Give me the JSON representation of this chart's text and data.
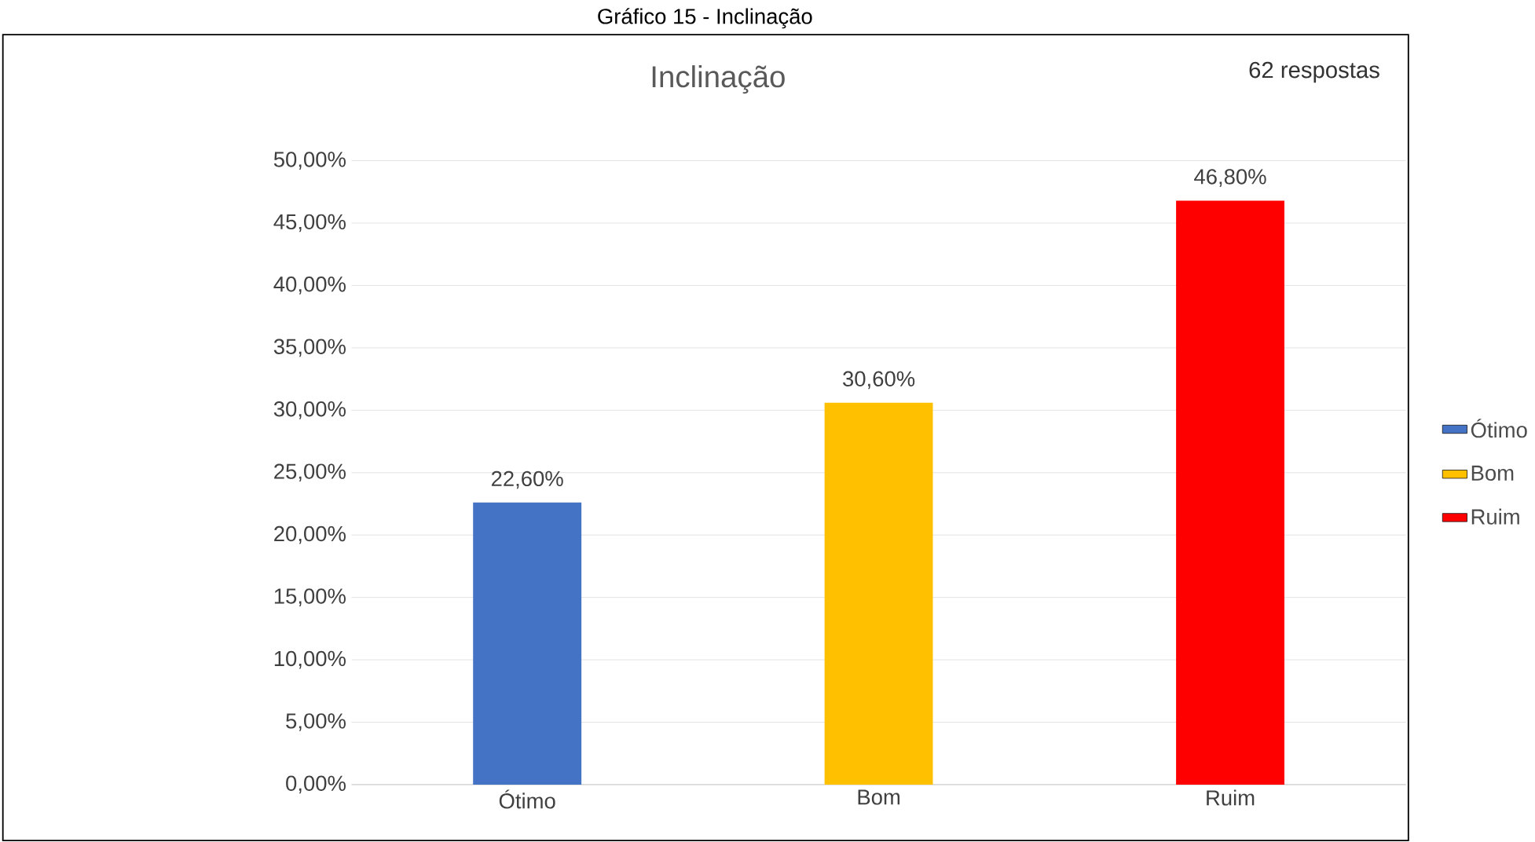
{
  "chart_data": {
    "type": "bar",
    "title": "Gráfico 15 - Inclinação",
    "subtitle": "Inclinação",
    "annotations": [
      "62 respostas"
    ],
    "categories": [
      "Ótimo",
      "Bom",
      "Ruim"
    ],
    "series": [
      {
        "name": "Ótimo",
        "color": "#4472c4",
        "values": [
          22.6,
          null,
          null
        ],
        "value_labels": [
          "22,60%",
          null,
          null
        ]
      },
      {
        "name": "Bom",
        "color": "#ffc000",
        "values": [
          null,
          30.6,
          null
        ],
        "value_labels": [
          null,
          "30,60%",
          null
        ]
      },
      {
        "name": "Ruim",
        "color": "#ff0000",
        "values": [
          null,
          null,
          46.8
        ],
        "value_labels": [
          null,
          null,
          "46,80%"
        ]
      }
    ],
    "ylim": [
      0,
      50
    ],
    "yticks": [
      {
        "value": 0,
        "label": "0,00%"
      },
      {
        "value": 5,
        "label": "5,00%"
      },
      {
        "value": 10,
        "label": "10,00%"
      },
      {
        "value": 15,
        "label": "15,00%"
      },
      {
        "value": 20,
        "label": "20,00%"
      },
      {
        "value": 25,
        "label": "25,00%"
      },
      {
        "value": 30,
        "label": "30,00%"
      },
      {
        "value": 35,
        "label": "35,00%"
      },
      {
        "value": 40,
        "label": "40,00%"
      },
      {
        "value": 45,
        "label": "45,00%"
      },
      {
        "value": 50,
        "label": "50,00%"
      }
    ],
    "grid": "y",
    "legend": "right"
  }
}
